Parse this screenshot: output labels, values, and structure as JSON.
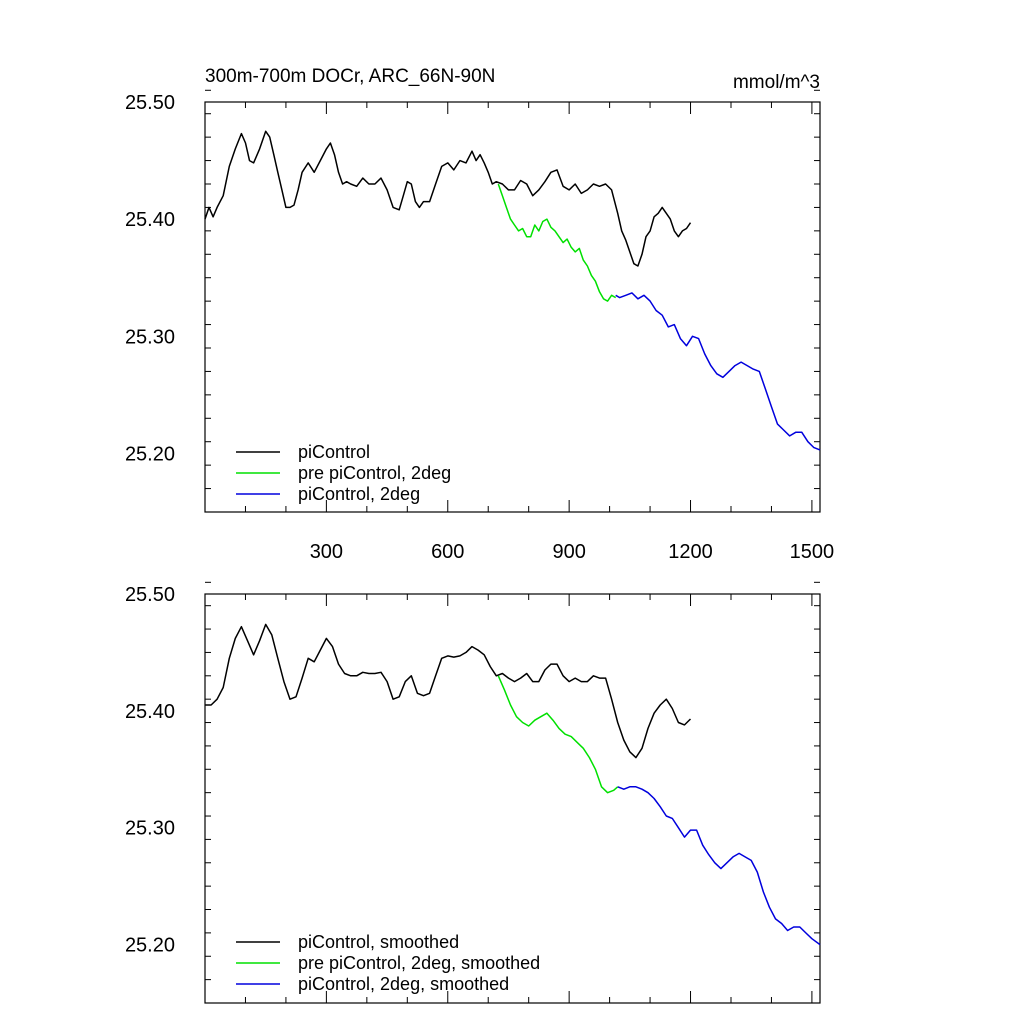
{
  "chart_data": [
    {
      "type": "line",
      "title": "300m-700m DOCr, ARC_66N-90N",
      "units": "mmol/m^3",
      "xlim": [
        0,
        1520
      ],
      "ylim": [
        25.15,
        25.5
      ],
      "xticks": [
        300,
        600,
        900,
        1200,
        1500
      ],
      "yticks": [
        25.2,
        25.3,
        25.4,
        25.5
      ],
      "ytick_labels": [
        "25.20",
        "25.30",
        "25.40",
        "25.50"
      ],
      "show_x_labels": true,
      "legend_position": "bottom-left",
      "series": [
        {
          "name": "piControl",
          "color": "#000000",
          "x": [
            0,
            10,
            20,
            30,
            45,
            60,
            75,
            90,
            100,
            110,
            120,
            135,
            150,
            160,
            170,
            180,
            190,
            200,
            210,
            220,
            230,
            240,
            255,
            270,
            285,
            300,
            310,
            320,
            330,
            340,
            350,
            360,
            375,
            390,
            405,
            420,
            435,
            450,
            465,
            480,
            490,
            500,
            510,
            520,
            530,
            540,
            555,
            570,
            585,
            600,
            615,
            630,
            645,
            660,
            670,
            680,
            690,
            700,
            710,
            720,
            735,
            750,
            765,
            780,
            795,
            810,
            825,
            840,
            855,
            870,
            885,
            900,
            915,
            930,
            945,
            960,
            975,
            990,
            1005,
            1020,
            1030,
            1040,
            1050,
            1060,
            1070,
            1080,
            1090,
            1100,
            1110,
            1120,
            1130,
            1140,
            1150,
            1160,
            1170,
            1180,
            1190,
            1200
          ],
          "values": [
            25.4,
            25.41,
            25.402,
            25.41,
            25.42,
            25.445,
            25.46,
            25.473,
            25.465,
            25.45,
            25.448,
            25.46,
            25.475,
            25.47,
            25.455,
            25.44,
            25.425,
            25.41,
            25.41,
            25.412,
            25.425,
            25.44,
            25.448,
            25.44,
            25.45,
            25.46,
            25.465,
            25.455,
            25.44,
            25.43,
            25.432,
            25.43,
            25.428,
            25.435,
            25.43,
            25.43,
            25.435,
            25.425,
            25.41,
            25.408,
            25.42,
            25.432,
            25.43,
            25.415,
            25.41,
            25.415,
            25.415,
            25.43,
            25.445,
            25.448,
            25.442,
            25.45,
            25.448,
            25.458,
            25.45,
            25.455,
            25.448,
            25.44,
            25.43,
            25.432,
            25.43,
            25.425,
            25.425,
            25.433,
            25.43,
            25.42,
            25.425,
            25.432,
            25.44,
            25.442,
            25.428,
            25.425,
            25.43,
            25.422,
            25.425,
            25.43,
            25.428,
            25.43,
            25.425,
            25.405,
            25.39,
            25.382,
            25.372,
            25.362,
            25.36,
            25.37,
            25.385,
            25.39,
            25.402,
            25.405,
            25.41,
            25.405,
            25.4,
            25.39,
            25.385,
            25.39,
            25.392,
            25.397
          ]
        },
        {
          "name": "pre piControl, 2deg",
          "color": "#00e000",
          "x": [
            725,
            735,
            745,
            755,
            765,
            775,
            785,
            795,
            805,
            815,
            825,
            835,
            845,
            855,
            865,
            875,
            885,
            895,
            905,
            915,
            925,
            935,
            945,
            955,
            965,
            975,
            985,
            995,
            1005,
            1015
          ],
          "values": [
            25.43,
            25.42,
            25.41,
            25.4,
            25.395,
            25.39,
            25.392,
            25.385,
            25.385,
            25.395,
            25.39,
            25.398,
            25.4,
            25.393,
            25.39,
            25.385,
            25.38,
            25.383,
            25.376,
            25.372,
            25.375,
            25.365,
            25.36,
            25.352,
            25.347,
            25.338,
            25.332,
            25.33,
            25.335,
            25.333
          ]
        },
        {
          "name": "piControl, 2deg",
          "color": "#0000dd",
          "x": [
            1015,
            1025,
            1040,
            1055,
            1070,
            1085,
            1100,
            1115,
            1130,
            1145,
            1160,
            1175,
            1190,
            1205,
            1220,
            1235,
            1250,
            1265,
            1280,
            1295,
            1310,
            1325,
            1340,
            1355,
            1370,
            1385,
            1400,
            1415,
            1430,
            1445,
            1460,
            1475,
            1490,
            1505,
            1520
          ],
          "values": [
            25.335,
            25.333,
            25.335,
            25.337,
            25.332,
            25.335,
            25.33,
            25.322,
            25.318,
            25.308,
            25.31,
            25.298,
            25.292,
            25.3,
            25.298,
            25.285,
            25.275,
            25.268,
            25.265,
            25.27,
            25.275,
            25.278,
            25.275,
            25.272,
            25.27,
            25.255,
            25.24,
            25.225,
            25.22,
            25.215,
            25.218,
            25.218,
            25.21,
            25.205,
            25.203
          ]
        }
      ]
    },
    {
      "type": "line",
      "title": "",
      "units": "",
      "xlim": [
        0,
        1520
      ],
      "ylim": [
        25.15,
        25.5
      ],
      "xticks": [
        300,
        600,
        900,
        1200,
        1500
      ],
      "yticks": [
        25.2,
        25.3,
        25.4,
        25.5
      ],
      "ytick_labels": [
        "25.20",
        "25.30",
        "25.40",
        "25.50"
      ],
      "show_x_labels": false,
      "legend_position": "bottom-left",
      "series": [
        {
          "name": "piControl, smoothed",
          "color": "#000000",
          "x": [
            0,
            15,
            30,
            45,
            60,
            75,
            90,
            105,
            120,
            135,
            150,
            165,
            180,
            195,
            210,
            225,
            240,
            255,
            270,
            285,
            300,
            315,
            330,
            345,
            360,
            375,
            390,
            405,
            420,
            435,
            450,
            465,
            480,
            495,
            510,
            525,
            540,
            555,
            570,
            585,
            600,
            615,
            630,
            645,
            660,
            675,
            690,
            705,
            720,
            735,
            750,
            765,
            780,
            795,
            810,
            825,
            840,
            855,
            870,
            885,
            900,
            915,
            930,
            945,
            960,
            975,
            990,
            1005,
            1020,
            1035,
            1050,
            1065,
            1080,
            1095,
            1110,
            1125,
            1140,
            1155,
            1170,
            1185,
            1200
          ],
          "values": [
            25.405,
            25.405,
            25.41,
            25.42,
            25.445,
            25.462,
            25.472,
            25.46,
            25.448,
            25.46,
            25.474,
            25.465,
            25.445,
            25.425,
            25.41,
            25.412,
            25.428,
            25.445,
            25.442,
            25.452,
            25.462,
            25.455,
            25.44,
            25.432,
            25.43,
            25.43,
            25.433,
            25.432,
            25.432,
            25.433,
            25.425,
            25.41,
            25.412,
            25.425,
            25.43,
            25.415,
            25.413,
            25.415,
            25.43,
            25.445,
            25.447,
            25.446,
            25.447,
            25.45,
            25.455,
            25.452,
            25.448,
            25.438,
            25.43,
            25.432,
            25.428,
            25.425,
            25.428,
            25.432,
            25.425,
            25.425,
            25.435,
            25.44,
            25.44,
            25.43,
            25.425,
            25.428,
            25.425,
            25.425,
            25.43,
            25.428,
            25.428,
            25.41,
            25.39,
            25.375,
            25.365,
            25.36,
            25.368,
            25.385,
            25.398,
            25.405,
            25.41,
            25.402,
            25.39,
            25.388,
            25.393
          ]
        },
        {
          "name": "pre piControl, 2deg, smoothed",
          "color": "#00e000",
          "x": [
            725,
            740,
            755,
            770,
            785,
            800,
            815,
            830,
            845,
            860,
            875,
            890,
            905,
            920,
            935,
            950,
            965,
            980,
            995,
            1010,
            1020
          ],
          "values": [
            25.43,
            25.418,
            25.405,
            25.395,
            25.39,
            25.387,
            25.392,
            25.395,
            25.398,
            25.392,
            25.385,
            25.38,
            25.378,
            25.373,
            25.368,
            25.36,
            25.35,
            25.335,
            25.33,
            25.332,
            25.335
          ]
        },
        {
          "name": "piControl, 2deg, smoothed",
          "color": "#0000dd",
          "x": [
            1020,
            1035,
            1050,
            1065,
            1080,
            1095,
            1110,
            1125,
            1140,
            1155,
            1170,
            1185,
            1200,
            1215,
            1230,
            1245,
            1260,
            1275,
            1290,
            1305,
            1320,
            1335,
            1350,
            1365,
            1380,
            1395,
            1410,
            1425,
            1440,
            1455,
            1470,
            1485,
            1500,
            1520
          ],
          "values": [
            25.335,
            25.333,
            25.335,
            25.335,
            25.333,
            25.33,
            25.325,
            25.318,
            25.31,
            25.308,
            25.3,
            25.292,
            25.298,
            25.298,
            25.285,
            25.277,
            25.27,
            25.265,
            25.27,
            25.275,
            25.278,
            25.275,
            25.272,
            25.262,
            25.245,
            25.232,
            25.222,
            25.218,
            25.212,
            25.215,
            25.215,
            25.21,
            25.205,
            25.2
          ]
        }
      ]
    }
  ]
}
